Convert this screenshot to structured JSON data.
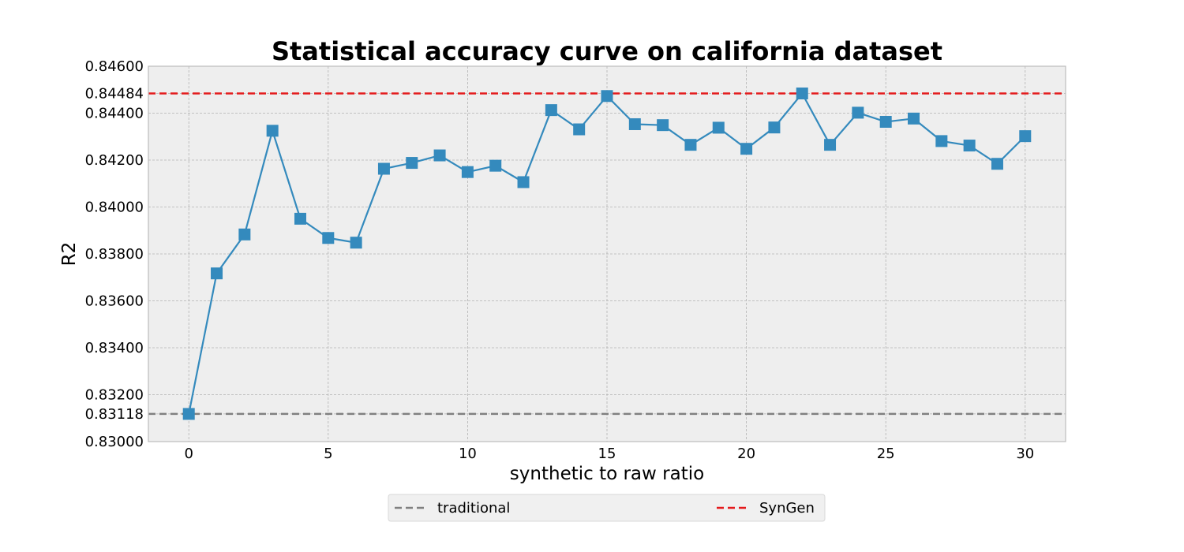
{
  "chart_data": {
    "type": "line",
    "title": "Statistical accuracy curve on california dataset",
    "xlabel": "synthetic to raw ratio",
    "ylabel": "R2",
    "xlim": [
      -1.45,
      31.45
    ],
    "ylim": [
      0.83,
      0.846
    ],
    "xticks": [
      0,
      5,
      10,
      15,
      20,
      25,
      30
    ],
    "yticks": [
      0.83,
      0.83118,
      0.832,
      0.834,
      0.836,
      0.838,
      0.84,
      0.842,
      0.844,
      0.84484,
      0.846
    ],
    "ytick_labels": [
      "0.83000",
      "0.83118",
      "0.83200",
      "0.83400",
      "0.83600",
      "0.83800",
      "0.84000",
      "0.84200",
      "0.84400",
      "0.84484",
      "0.84600"
    ],
    "grid": true,
    "legend_position": "bottom-center",
    "series": [
      {
        "name": "",
        "color": "#348abd",
        "marker": "square",
        "x": [
          0,
          1,
          2,
          3,
          4,
          5,
          6,
          7,
          8,
          9,
          10,
          11,
          12,
          13,
          14,
          15,
          16,
          17,
          18,
          19,
          20,
          21,
          22,
          23,
          24,
          25,
          26,
          27,
          28,
          29,
          30
        ],
        "values": [
          0.83118,
          0.83717,
          0.83883,
          0.84325,
          0.8395,
          0.83868,
          0.83848,
          0.84163,
          0.84188,
          0.8422,
          0.84149,
          0.84176,
          0.84106,
          0.84413,
          0.84331,
          0.84473,
          0.84353,
          0.84349,
          0.84265,
          0.84338,
          0.84248,
          0.84339,
          0.84484,
          0.84265,
          0.84402,
          0.84363,
          0.84377,
          0.84281,
          0.84262,
          0.84184,
          0.84302
        ]
      }
    ],
    "reference_lines": [
      {
        "name": "traditional",
        "value": 0.83118,
        "color": "#808080",
        "style": "dashed"
      },
      {
        "name": "SynGen",
        "value": 0.84484,
        "color": "#e41a1c",
        "style": "dashed"
      }
    ]
  }
}
